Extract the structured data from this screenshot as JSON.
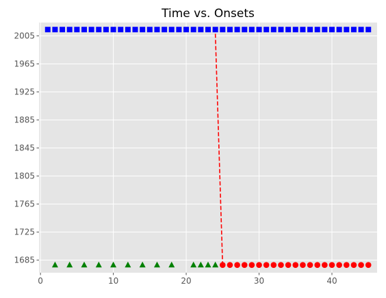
{
  "chart_data": {
    "type": "scatter",
    "title": "Time vs. Onsets",
    "xlabel": "",
    "ylabel": "",
    "xlim": [
      -0.2,
      46.2
    ],
    "ylim": [
      1667,
      2024
    ],
    "xticks": [
      0,
      10,
      20,
      30,
      40
    ],
    "yticks": [
      1685,
      1725,
      1765,
      1805,
      1845,
      1885,
      1925,
      1965,
      2005
    ],
    "grid": true,
    "background": "#e5e5e5",
    "series": [
      {
        "marker": "square",
        "color": "#0000ff",
        "points": [
          [
            1,
            2014
          ],
          [
            2,
            2014
          ],
          [
            3,
            2014
          ],
          [
            4,
            2014
          ],
          [
            5,
            2014
          ],
          [
            6,
            2014
          ],
          [
            7,
            2014
          ],
          [
            8,
            2014
          ],
          [
            9,
            2014
          ],
          [
            10,
            2014
          ],
          [
            11,
            2014
          ],
          [
            12,
            2014
          ],
          [
            13,
            2014
          ],
          [
            14,
            2014
          ],
          [
            15,
            2014
          ],
          [
            16,
            2014
          ],
          [
            17,
            2014
          ],
          [
            18,
            2014
          ],
          [
            19,
            2014
          ],
          [
            20,
            2014
          ],
          [
            21,
            2014
          ],
          [
            22,
            2014
          ],
          [
            23,
            2014
          ],
          [
            24,
            2014
          ],
          [
            25,
            2014
          ],
          [
            26,
            2014
          ],
          [
            27,
            2014
          ],
          [
            28,
            2014
          ],
          [
            29,
            2014
          ],
          [
            30,
            2014
          ],
          [
            31,
            2014
          ],
          [
            32,
            2014
          ],
          [
            33,
            2014
          ],
          [
            34,
            2014
          ],
          [
            35,
            2014
          ],
          [
            36,
            2014
          ],
          [
            37,
            2014
          ],
          [
            38,
            2014
          ],
          [
            39,
            2014
          ],
          [
            40,
            2014
          ],
          [
            41,
            2014
          ],
          [
            42,
            2014
          ],
          [
            43,
            2014
          ],
          [
            44,
            2014
          ],
          [
            45,
            2014
          ]
        ]
      },
      {
        "marker": "triangle",
        "color": "#008000",
        "points": [
          [
            2,
            1678
          ],
          [
            4,
            1678
          ],
          [
            6,
            1678
          ],
          [
            8,
            1678
          ],
          [
            10,
            1678
          ],
          [
            12,
            1678
          ],
          [
            14,
            1678
          ],
          [
            16,
            1678
          ],
          [
            18,
            1678
          ],
          [
            21,
            1678
          ],
          [
            22,
            1678
          ],
          [
            23,
            1678
          ],
          [
            24,
            1678
          ]
        ]
      },
      {
        "marker": "circle",
        "color": "#ff0000",
        "points": [
          [
            25,
            1678
          ],
          [
            26,
            1678
          ],
          [
            27,
            1678
          ],
          [
            28,
            1678
          ],
          [
            29,
            1678
          ],
          [
            30,
            1678
          ],
          [
            31,
            1678
          ],
          [
            32,
            1678
          ],
          [
            33,
            1678
          ],
          [
            34,
            1678
          ],
          [
            35,
            1678
          ],
          [
            36,
            1678
          ],
          [
            37,
            1678
          ],
          [
            38,
            1678
          ],
          [
            39,
            1678
          ],
          [
            40,
            1678
          ],
          [
            41,
            1678
          ],
          [
            42,
            1678
          ],
          [
            43,
            1678
          ],
          [
            44,
            1678
          ],
          [
            45,
            1678
          ]
        ]
      },
      {
        "marker": "none",
        "line": "dashed",
        "color": "#ff0000",
        "points": [
          [
            24,
            2008
          ],
          [
            25,
            1678
          ]
        ]
      }
    ]
  }
}
